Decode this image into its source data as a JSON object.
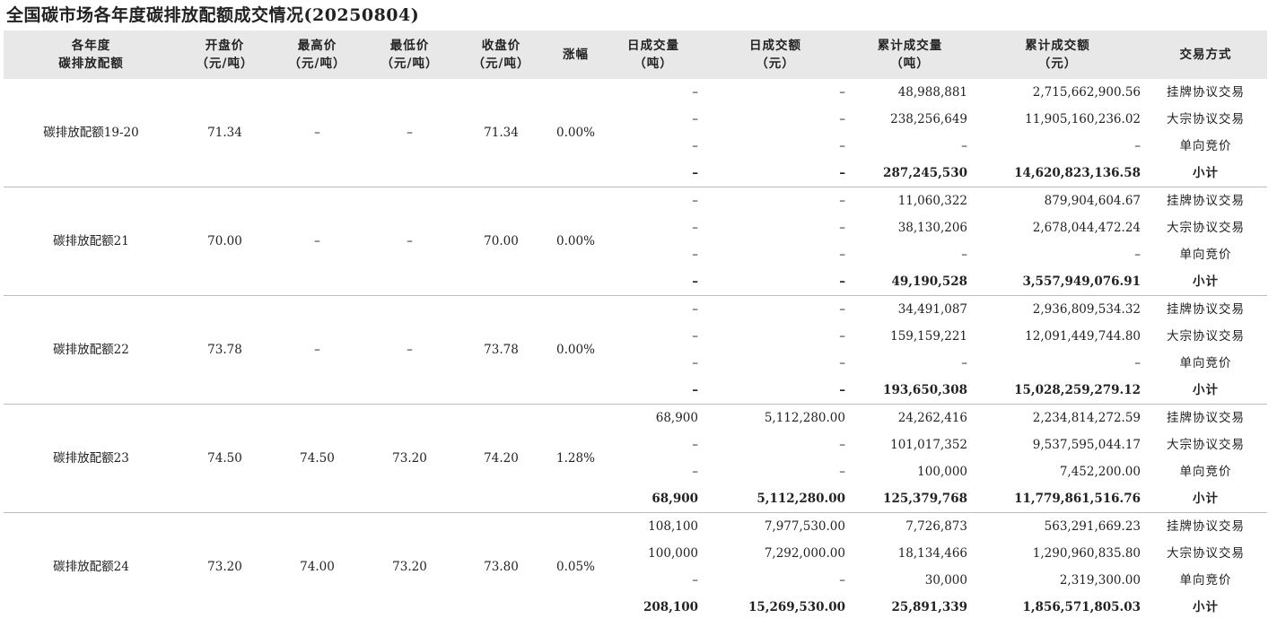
{
  "title": "全国碳市场各年度碳排放配额成交情况(20250804)",
  "headers": {
    "name": [
      "各年度",
      "碳排放配额"
    ],
    "open": [
      "开盘价",
      "（元/吨）"
    ],
    "high": [
      "最高价",
      "（元/吨）"
    ],
    "low": [
      "最低价",
      "（元/吨）"
    ],
    "close": [
      "收盘价",
      "（元/吨）"
    ],
    "change": [
      "涨幅"
    ],
    "daily_volume": [
      "日成交量",
      "（吨）"
    ],
    "daily_amount": [
      "日成交额",
      "（元）"
    ],
    "cum_volume": [
      "累计成交量",
      "（吨）"
    ],
    "cum_amount": [
      "累计成交额",
      "（元）"
    ],
    "mode": [
      "交易方式"
    ]
  },
  "groups": [
    {
      "name": "碳排放配额19-20",
      "open": "71.34",
      "high": "–",
      "low": "–",
      "close": "71.34",
      "change": "0.00%",
      "rows": [
        {
          "dv": "–",
          "da": "–",
          "cv": "48,988,881",
          "ca": "2,715,662,900.56",
          "mode": "挂牌协议交易"
        },
        {
          "dv": "–",
          "da": "–",
          "cv": "238,256,649",
          "ca": "11,905,160,236.02",
          "mode": "大宗协议交易"
        },
        {
          "dv": "–",
          "da": "–",
          "cv": "–",
          "ca": "–",
          "mode": "单向竞价"
        },
        {
          "dv": "–",
          "da": "–",
          "cv": "287,245,530",
          "ca": "14,620,823,136.58",
          "mode": "小计"
        }
      ]
    },
    {
      "name": "碳排放配额21",
      "open": "70.00",
      "high": "–",
      "low": "–",
      "close": "70.00",
      "change": "0.00%",
      "rows": [
        {
          "dv": "–",
          "da": "–",
          "cv": "11,060,322",
          "ca": "879,904,604.67",
          "mode": "挂牌协议交易"
        },
        {
          "dv": "–",
          "da": "–",
          "cv": "38,130,206",
          "ca": "2,678,044,472.24",
          "mode": "大宗协议交易"
        },
        {
          "dv": "–",
          "da": "–",
          "cv": "–",
          "ca": "–",
          "mode": "单向竞价"
        },
        {
          "dv": "–",
          "da": "–",
          "cv": "49,190,528",
          "ca": "3,557,949,076.91",
          "mode": "小计"
        }
      ]
    },
    {
      "name": "碳排放配额22",
      "open": "73.78",
      "high": "–",
      "low": "–",
      "close": "73.78",
      "change": "0.00%",
      "rows": [
        {
          "dv": "–",
          "da": "–",
          "cv": "34,491,087",
          "ca": "2,936,809,534.32",
          "mode": "挂牌协议交易"
        },
        {
          "dv": "–",
          "da": "–",
          "cv": "159,159,221",
          "ca": "12,091,449,744.80",
          "mode": "大宗协议交易"
        },
        {
          "dv": "–",
          "da": "–",
          "cv": "–",
          "ca": "–",
          "mode": "单向竞价"
        },
        {
          "dv": "–",
          "da": "–",
          "cv": "193,650,308",
          "ca": "15,028,259,279.12",
          "mode": "小计"
        }
      ]
    },
    {
      "name": "碳排放配额23",
      "open": "74.50",
      "high": "74.50",
      "low": "73.20",
      "close": "74.20",
      "change": "1.28%",
      "rows": [
        {
          "dv": "68,900",
          "da": "5,112,280.00",
          "cv": "24,262,416",
          "ca": "2,234,814,272.59",
          "mode": "挂牌协议交易"
        },
        {
          "dv": "–",
          "da": "–",
          "cv": "101,017,352",
          "ca": "9,537,595,044.17",
          "mode": "大宗协议交易"
        },
        {
          "dv": "–",
          "da": "–",
          "cv": "100,000",
          "ca": "7,452,200.00",
          "mode": "单向竞价"
        },
        {
          "dv": "68,900",
          "da": "5,112,280.00",
          "cv": "125,379,768",
          "ca": "11,779,861,516.76",
          "mode": "小计"
        }
      ]
    },
    {
      "name": "碳排放配额24",
      "open": "73.20",
      "high": "74.00",
      "low": "73.20",
      "close": "73.80",
      "change": "0.05%",
      "rows": [
        {
          "dv": "108,100",
          "da": "7,977,530.00",
          "cv": "7,726,873",
          "ca": "563,291,669.23",
          "mode": "挂牌协议交易"
        },
        {
          "dv": "100,000",
          "da": "7,292,000.00",
          "cv": "18,134,466",
          "ca": "1,290,960,835.80",
          "mode": "大宗协议交易"
        },
        {
          "dv": "–",
          "da": "–",
          "cv": "30,000",
          "ca": "2,319,300.00",
          "mode": "单向竞价"
        },
        {
          "dv": "208,100",
          "da": "15,269,530.00",
          "cv": "25,891,339",
          "ca": "1,856,571,805.03",
          "mode": "小计"
        }
      ]
    }
  ]
}
